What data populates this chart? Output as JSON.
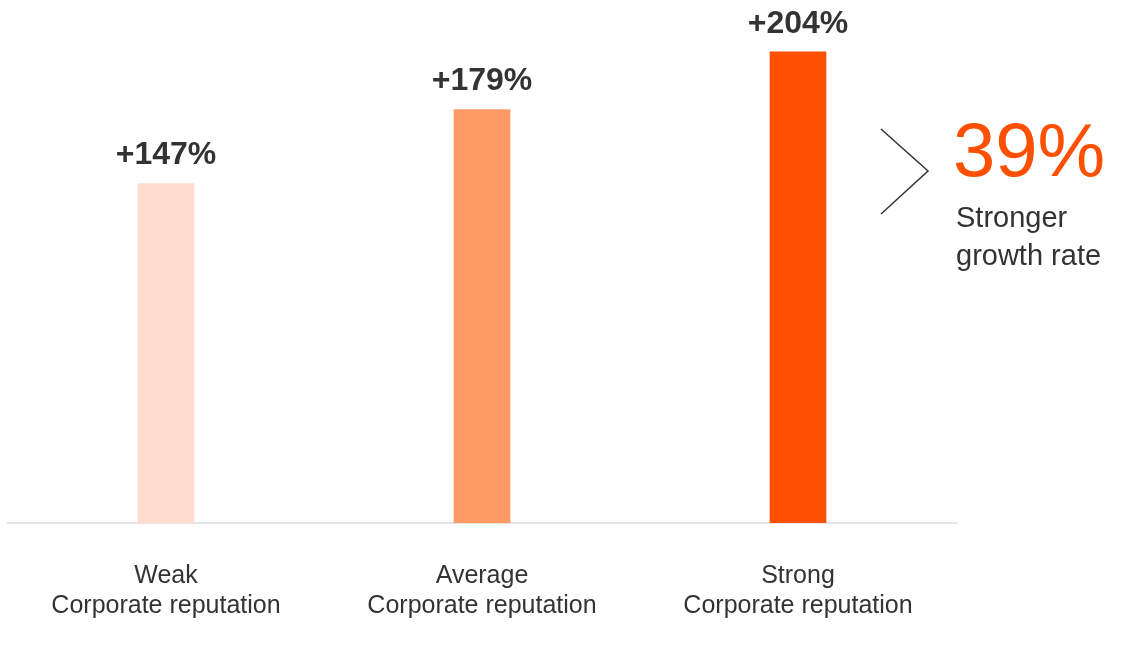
{
  "chart_data": {
    "type": "bar",
    "categories": [
      "Weak\nCorporate reputation",
      "Average\nCorporate reputation",
      "Strong\nCorporate reputation"
    ],
    "values": [
      147,
      179,
      204
    ],
    "colors": [
      "#ffdccc",
      "#ff9966",
      "#fe5000"
    ],
    "value_labels": [
      "+147%",
      "+179%",
      "+204%"
    ],
    "annotations": [
      "39%",
      "Stronger growth rate"
    ],
    "grid": false,
    "legend": false
  }
}
